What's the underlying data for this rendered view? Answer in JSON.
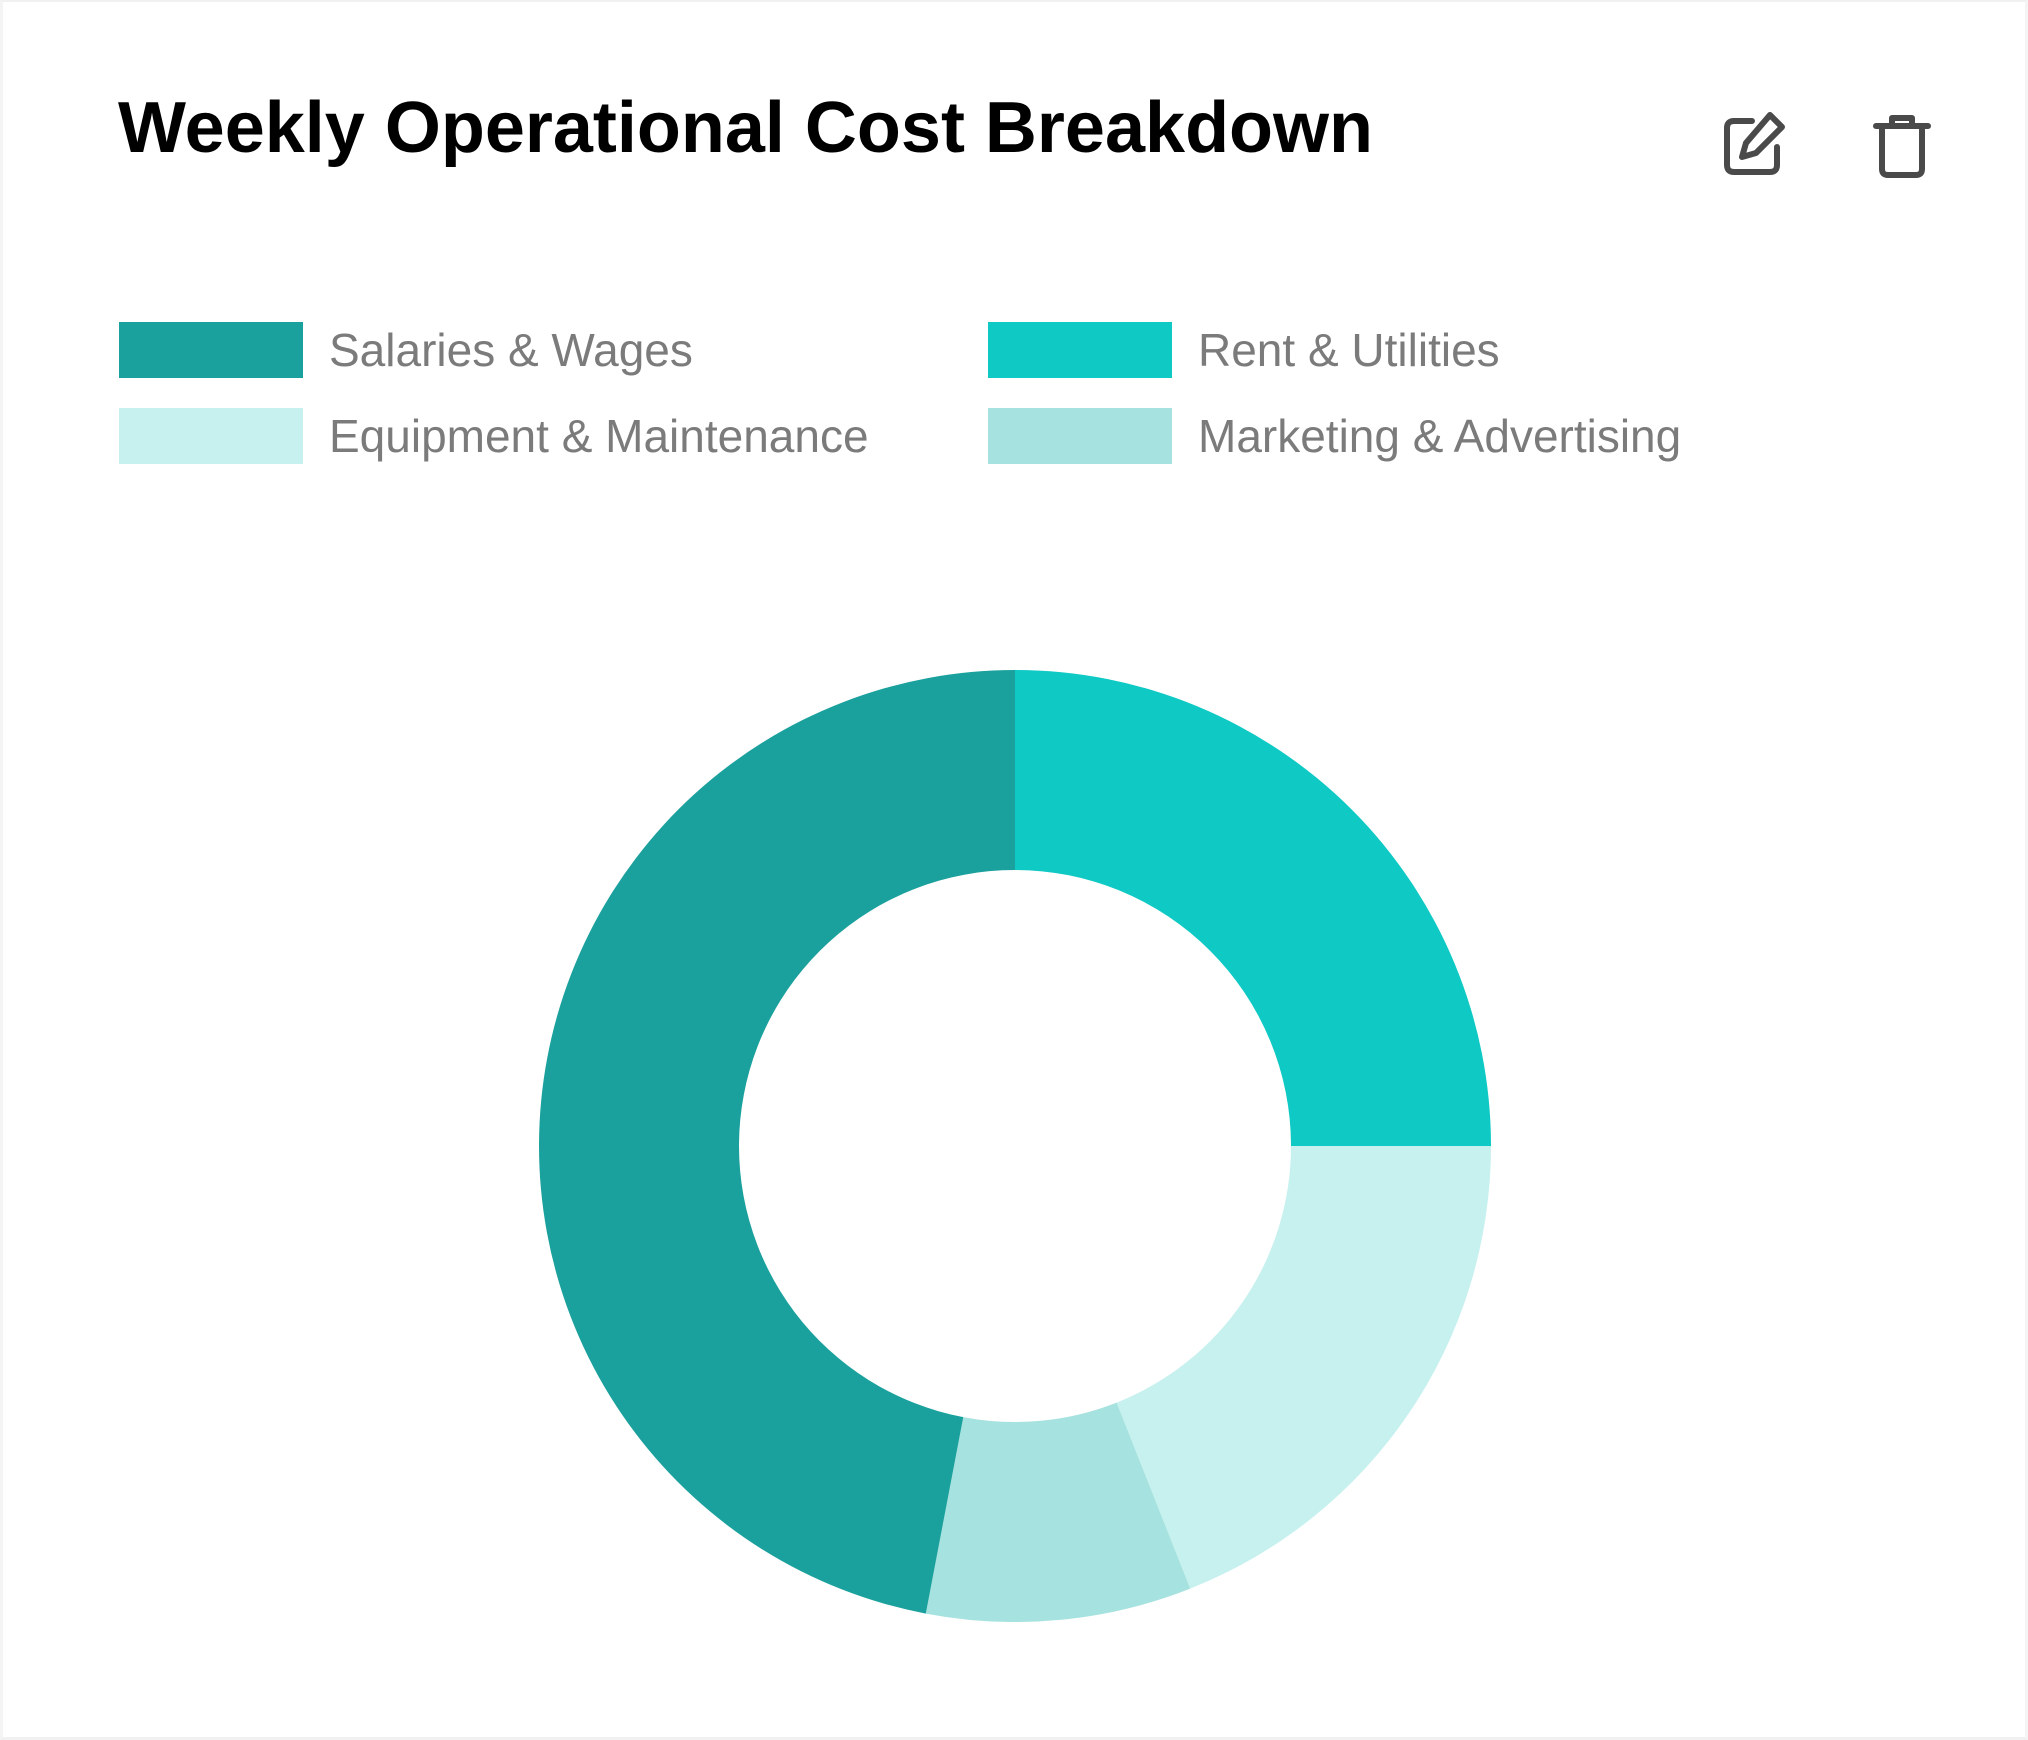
{
  "card": {
    "title": "Weekly Operational Cost Breakdown",
    "actions": {
      "edit_icon": "edit-icon",
      "delete_icon": "trash-icon"
    }
  },
  "chart_data": {
    "type": "pie",
    "variant": "donut",
    "title": "Weekly Operational Cost Breakdown",
    "categories": [
      "Salaries & Wages",
      "Rent & Utilities",
      "Equipment & Maintenance",
      "Marketing & Advertising"
    ],
    "values": [
      47,
      25,
      19,
      9
    ],
    "colors": [
      "#1ba19d",
      "#0fc9c5",
      "#c6f1ef",
      "#a6e2df"
    ],
    "slice_order": [
      "Rent & Utilities",
      "Equipment & Maintenance",
      "Marketing & Advertising",
      "Salaries & Wages"
    ],
    "start_angle": "12 o'clock",
    "direction": "clockwise",
    "legend": "top-left, two columns"
  }
}
